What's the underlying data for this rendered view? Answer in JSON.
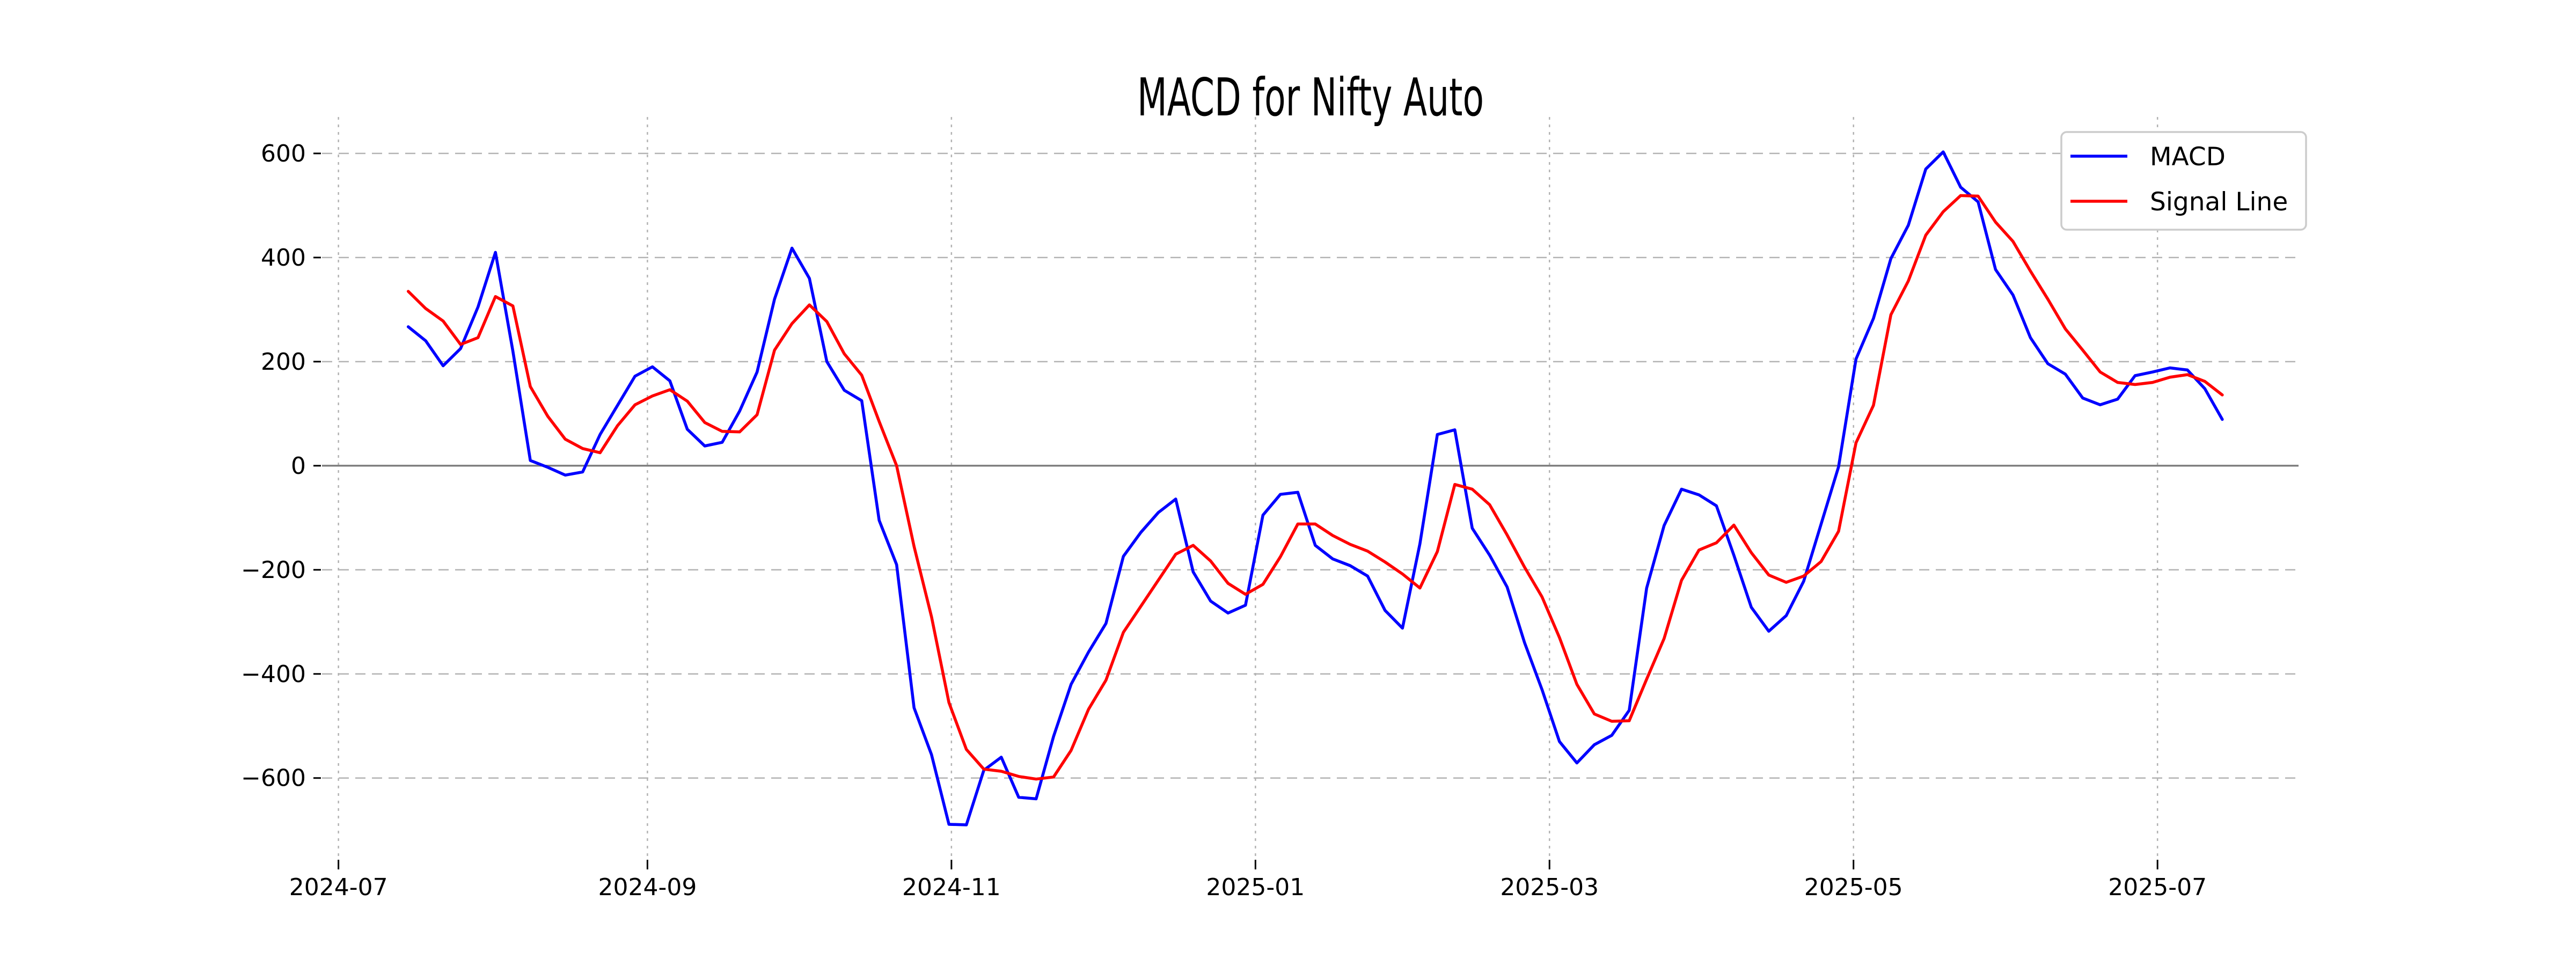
{
  "title": "MACD for Nifty Auto",
  "legend": {
    "items": [
      {
        "label": "MACD",
        "color": "#0000ff"
      },
      {
        "label": "Signal Line",
        "color": "#ff0000"
      }
    ],
    "position": "upper right"
  },
  "colors": {
    "macd_line": "#0000ff",
    "signal_line": "#ff0000",
    "grid": "#b3b3b3",
    "zero_line": "#808080",
    "legend_border": "#cccccc",
    "background": "#ffffff",
    "text": "#000000"
  },
  "chart_data": {
    "type": "line",
    "title": "MACD for Nifty Auto",
    "xlabel": "",
    "ylabel": "",
    "grid": true,
    "legend_position": "upper right",
    "x_tick_labels": [
      "2024-07",
      "2024-09",
      "2024-11",
      "2025-01",
      "2025-03",
      "2025-05",
      "2025-07"
    ],
    "x_tick_days": [
      0,
      62,
      123,
      184,
      243,
      304,
      365
    ],
    "y_ticks": [
      600,
      400,
      200,
      0,
      -200,
      -400,
      -600
    ],
    "xlim_days": [
      -3.3,
      393.3
    ],
    "ylim": [
      -757,
      670
    ],
    "x_epoch": "2024-07-01",
    "x_start_date": "2024-07-15",
    "x_interval_days": 3.5,
    "x_days": [
      14,
      17.5,
      21,
      24.5,
      28,
      31.5,
      35,
      38.5,
      42,
      45.5,
      49,
      52.5,
      56,
      59.5,
      63,
      66.5,
      70,
      73.5,
      77,
      80.5,
      84,
      87.5,
      91,
      94.5,
      98,
      101.5,
      105,
      108.5,
      112,
      115.5,
      119,
      122.5,
      126,
      129.5,
      133,
      136.5,
      140,
      143.5,
      147,
      150.5,
      154,
      157.5,
      161,
      164.5,
      168,
      171.5,
      175,
      178.5,
      182,
      185.5,
      189,
      192.5,
      196,
      199.5,
      203,
      206.5,
      210,
      213.5,
      217,
      220.5,
      224,
      227.5,
      231,
      234.5,
      238,
      241.5,
      245,
      248.5,
      252,
      255.5,
      259,
      262.5,
      266,
      269.5,
      273,
      276.5,
      280,
      283.5,
      287,
      290.5,
      294,
      297.5,
      301,
      304.5,
      308,
      311.5,
      315,
      318.5,
      322,
      325.5,
      329,
      332.5,
      336,
      339.5,
      343,
      346.5,
      350,
      353.5,
      357,
      360.5,
      364,
      367.5,
      371,
      374.5,
      378
    ],
    "series": [
      {
        "name": "MACD",
        "color": "#0000ff",
        "values": [
          267,
          240,
          192,
          225,
          305,
          410,
          220,
          10,
          -3,
          -18,
          -12,
          60,
          116,
          172,
          190,
          163,
          70,
          38,
          45,
          105,
          180,
          320,
          418,
          360,
          200,
          145,
          125,
          -105,
          -190,
          -465,
          -555,
          -689,
          -690,
          -585,
          -560,
          -637,
          -640,
          -520,
          -420,
          -358,
          -303,
          -174,
          -128,
          -90,
          -64,
          -204,
          -260,
          -283,
          -268,
          -95,
          -55,
          -51,
          -153,
          -179,
          -192,
          -212,
          -278,
          -312,
          -150,
          60,
          69,
          -120,
          -172,
          -233,
          -340,
          -430,
          -530,
          -571,
          -536,
          -518,
          -470,
          -235,
          -115,
          -45,
          -56,
          -77,
          -172,
          -272,
          -318,
          -288,
          -222,
          -112,
          -2,
          205,
          283,
          398,
          462,
          570,
          603,
          535,
          507,
          377,
          328,
          246,
          196,
          176,
          130,
          117,
          128,
          173,
          180,
          188,
          184,
          148,
          89
        ]
      },
      {
        "name": "Signal Line",
        "color": "#ff0000",
        "values": [
          335,
          302,
          278,
          233,
          246,
          325,
          307,
          152,
          95,
          51,
          33,
          25,
          77,
          117,
          134,
          146,
          124,
          83,
          66,
          65,
          98,
          222,
          273,
          309,
          277,
          215,
          174,
          85,
          0,
          -155,
          -290,
          -455,
          -545,
          -583,
          -587,
          -597,
          -602,
          -598,
          -547,
          -468,
          -412,
          -320,
          -270,
          -220,
          -170,
          -153,
          -183,
          -226,
          -247,
          -228,
          -175,
          -112,
          -112,
          -134,
          -151,
          -164,
          -185,
          -208,
          -235,
          -165,
          -36,
          -45,
          -75,
          -133,
          -195,
          -252,
          -330,
          -420,
          -477,
          -491,
          -490,
          -410,
          -332,
          -220,
          -162,
          -148,
          -114,
          -167,
          -210,
          -224,
          -212,
          -184,
          -126,
          44,
          116,
          290,
          355,
          443,
          488,
          519,
          518,
          468,
          431,
          374,
          320,
          263,
          222,
          180,
          160,
          156,
          160,
          170,
          175,
          162,
          136
        ]
      }
    ]
  }
}
